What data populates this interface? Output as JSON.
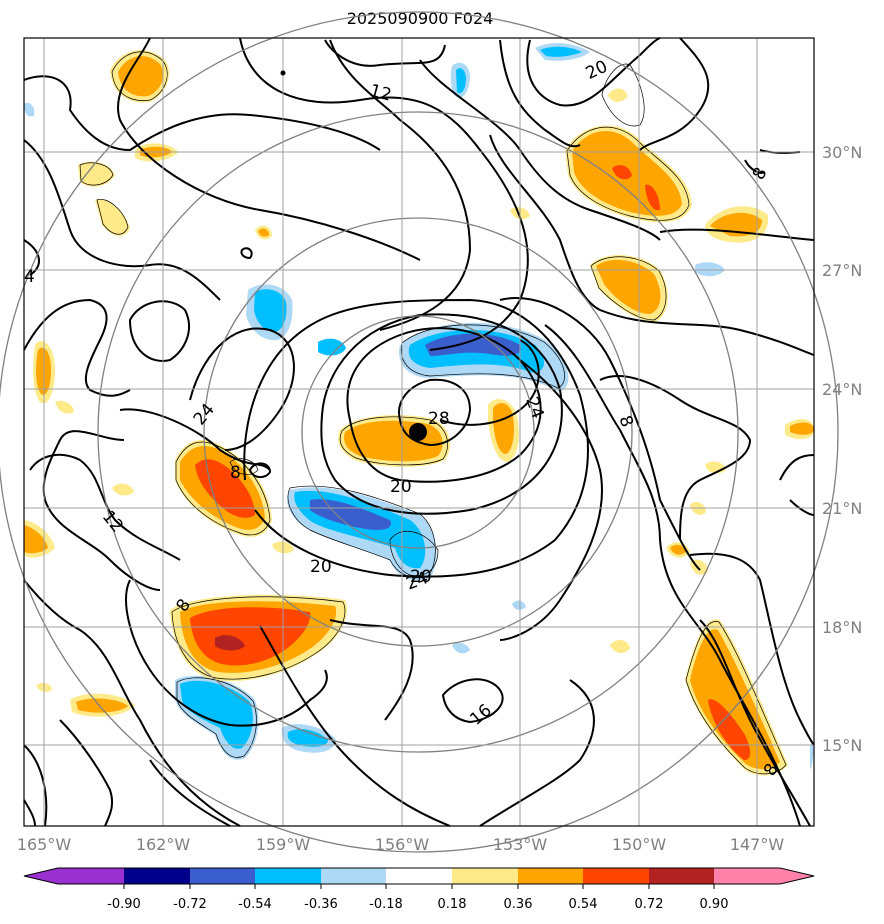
{
  "title": "2025090900 F024",
  "map": {
    "lon_labels": [
      "165°W",
      "162°W",
      "159°W",
      "156°W",
      "153°W",
      "150°W",
      "147°W"
    ],
    "lat_labels": [
      "30°N",
      "27°N",
      "24°N",
      "21°N",
      "18°N",
      "15°N"
    ],
    "contour_labels": [
      "12",
      "20",
      "8",
      "4",
      "24",
      "12",
      "24",
      "28",
      "20",
      "24",
      "8",
      "8",
      "20",
      "20",
      "8",
      "16",
      "8"
    ],
    "storm_center": {
      "lon": -155.7,
      "lat": 22.9
    }
  },
  "colorbar": {
    "levels": [
      "-0.90",
      "-0.72",
      "-0.54",
      "-0.36",
      "-0.18",
      "0.18",
      "0.36",
      "0.54",
      "0.72",
      "0.90"
    ],
    "colors": [
      "#9b30d0",
      "#00008b",
      "#3a5fcd",
      "#00bfff",
      "#add8f6",
      "#ffffff",
      "#ffea8a",
      "#ffa500",
      "#ff4500",
      "#b22222",
      "#ff82ab"
    ]
  }
}
